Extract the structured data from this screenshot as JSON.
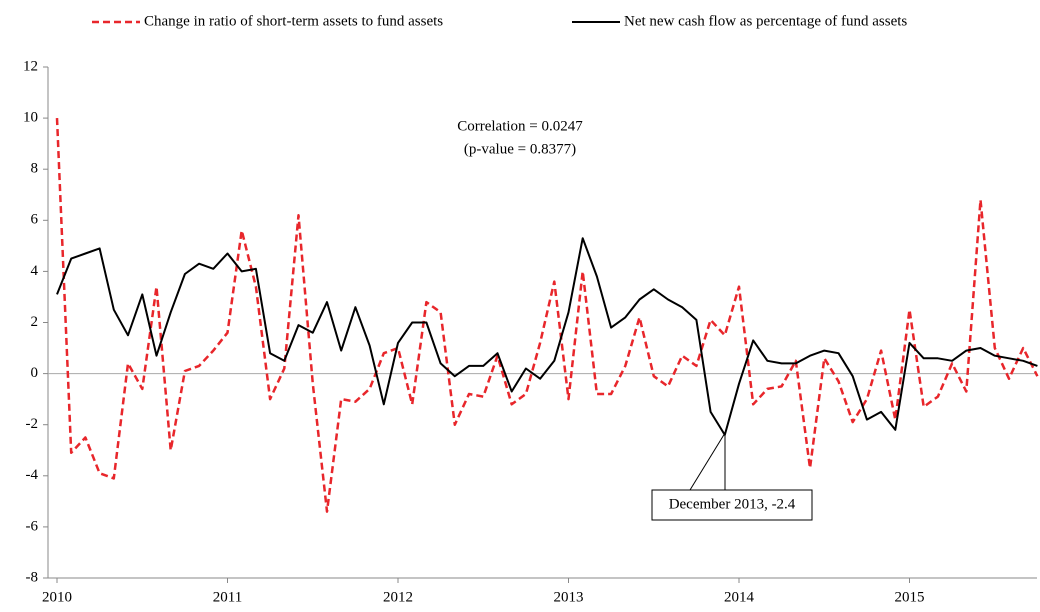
{
  "chart_data": {
    "type": "line",
    "categories": [
      "2010",
      null,
      null,
      null,
      null,
      null,
      null,
      null,
      null,
      null,
      null,
      null,
      "2011",
      null,
      null,
      null,
      null,
      null,
      null,
      null,
      null,
      null,
      null,
      null,
      "2012",
      null,
      null,
      null,
      null,
      null,
      null,
      null,
      null,
      null,
      null,
      null,
      "2013",
      null,
      null,
      null,
      null,
      null,
      null,
      null,
      null,
      null,
      null,
      null,
      "2014",
      null,
      null,
      null,
      null,
      null,
      null,
      null,
      null,
      null,
      null,
      null,
      "2015",
      null,
      null,
      null,
      null,
      null,
      null,
      null,
      null,
      null
    ],
    "series": [
      {
        "name": "Change in ratio of short-term assets to fund assets",
        "color": "#e8262b",
        "dash": true,
        "values": [
          10,
          -3.1,
          -2.5,
          -3.9,
          -4.1,
          0.4,
          -0.6,
          3.4,
          -3.0,
          0.1,
          0.3,
          0.9,
          1.6,
          5.6,
          3.4,
          -1.0,
          0.2,
          6.2,
          -0.4,
          -5.4,
          -1.0,
          -1.1,
          -0.6,
          0.8,
          1.0,
          -1.2,
          2.8,
          2.4,
          -2.0,
          -0.8,
          -0.9,
          0.7,
          -1.2,
          -0.8,
          1.2,
          3.6,
          -1.0,
          4.0,
          -0.8,
          -0.8,
          0.3,
          2.2,
          -0.1,
          -0.5,
          0.7,
          0.3,
          2.1,
          1.5,
          3.4,
          -1.2,
          -0.6,
          -0.5,
          0.5,
          -3.7,
          0.6,
          -0.3,
          -1.9,
          -1.0,
          0.9,
          -1.8,
          2.5,
          -1.3,
          -0.9,
          0.4,
          -0.7,
          6.8,
          1.0,
          -0.2,
          1.0,
          -0.1
        ]
      },
      {
        "name": "Net new cash flow as percentage of fund assets",
        "color": "#000000",
        "dash": false,
        "values": [
          3.1,
          4.5,
          4.7,
          4.9,
          2.5,
          1.5,
          3.1,
          0.7,
          2.4,
          3.9,
          4.3,
          4.1,
          4.7,
          4.0,
          4.1,
          0.8,
          0.5,
          1.9,
          1.6,
          2.8,
          0.9,
          2.6,
          1.1,
          -1.2,
          1.2,
          2.0,
          2.0,
          0.4,
          -0.1,
          0.3,
          0.3,
          0.8,
          -0.7,
          0.2,
          -0.2,
          0.5,
          2.4,
          5.3,
          3.8,
          1.8,
          2.2,
          2.9,
          3.3,
          2.9,
          2.6,
          2.1,
          -1.5,
          -2.4,
          -0.4,
          1.3,
          0.5,
          0.4,
          0.4,
          0.7,
          0.9,
          0.8,
          -0.1,
          -1.8,
          -1.5,
          -2.2,
          1.2,
          0.6,
          0.6,
          0.5,
          0.9,
          1.0,
          0.7,
          0.6,
          0.5,
          0.3
        ]
      }
    ],
    "ylim": [
      -8,
      12
    ],
    "yticks": [
      -8,
      -6,
      -4,
      -2,
      0,
      2,
      4,
      6,
      8,
      10,
      12
    ],
    "legend": "top",
    "annotations": [
      "Correlation = 0.0247",
      "(p-value = 0.8377)",
      "December 2013, -2.4"
    ]
  }
}
